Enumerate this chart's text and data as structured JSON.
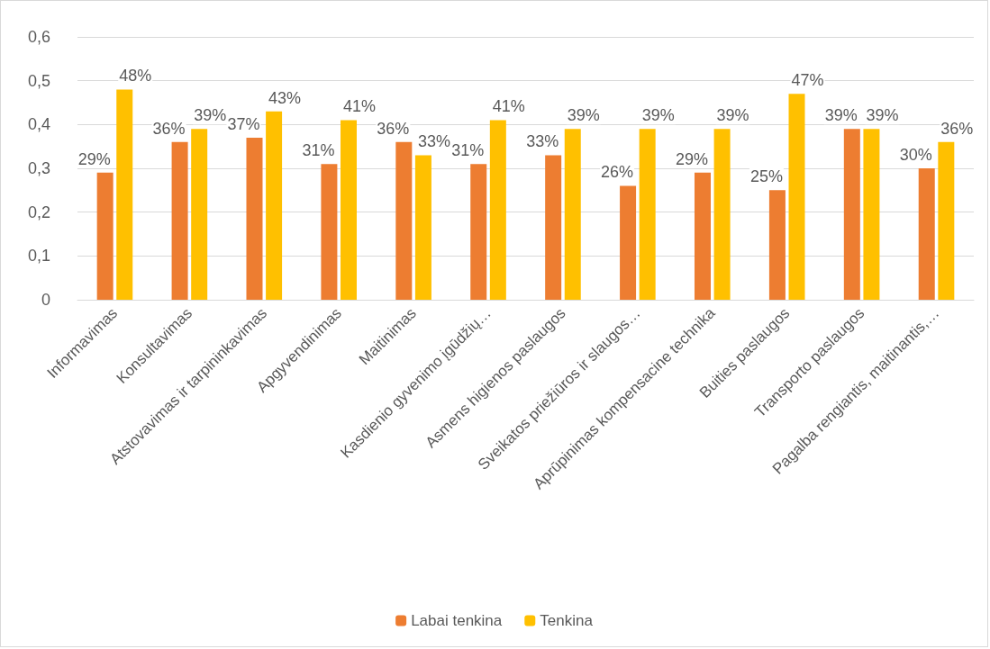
{
  "chart_data": {
    "type": "bar",
    "categories": [
      "Informavimas",
      "Konsultavimas",
      "Atstovavimas ir tarpininkavimas",
      "Apgyvendinimas",
      "Maitinimas",
      "Kasdienio gyvenimo įgūdžių…",
      "Asmens higienos paslaugos",
      "Sveikatos priežiūros ir slaugos…",
      "Aprūpinimas kompensacine technika",
      "Buities paslaugos",
      "Transporto paslaugos",
      "Pagalba rengiantis, maitinantis,…"
    ],
    "series": [
      {
        "name": "Labai tenkina",
        "color": "#ed7d31",
        "values": [
          0.29,
          0.36,
          0.37,
          0.31,
          0.36,
          0.31,
          0.33,
          0.26,
          0.29,
          0.25,
          0.39,
          0.3
        ],
        "value_labels": [
          "29%",
          "36%",
          "37%",
          "31%",
          "36%",
          "31%",
          "33%",
          "26%",
          "29%",
          "25%",
          "39%",
          "30%"
        ]
      },
      {
        "name": "Tenkina",
        "color": "#ffc000",
        "values": [
          0.48,
          0.39,
          0.43,
          0.41,
          0.33,
          0.41,
          0.39,
          0.39,
          0.39,
          0.47,
          0.39,
          0.36
        ],
        "value_labels": [
          "48%",
          "39%",
          "43%",
          "41%",
          "33%",
          "41%",
          "39%",
          "39%",
          "39%",
          "47%",
          "39%",
          "36%"
        ]
      }
    ],
    "ylim": [
      0,
      0.6
    ],
    "yticks": [
      0,
      {
        "value": 0.1,
        "label": "0,1"
      },
      {
        "value": 0.2,
        "label": "0,2"
      },
      {
        "value": 0.3,
        "label": "0,3"
      },
      {
        "value": 0.4,
        "label": "0,4"
      },
      {
        "value": 0.5,
        "label": "0,5"
      },
      {
        "value": 0.6,
        "label": "0,6"
      }
    ],
    "grid": "y",
    "legend": "bottom"
  }
}
